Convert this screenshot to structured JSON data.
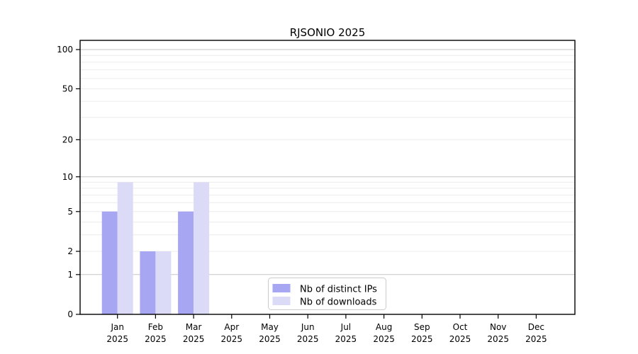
{
  "chart_data": {
    "type": "bar",
    "title": "RJSONIO 2025",
    "categories": [
      "Jan",
      "Feb",
      "Mar",
      "Apr",
      "May",
      "Jun",
      "Jul",
      "Aug",
      "Sep",
      "Oct",
      "Nov",
      "Dec"
    ],
    "x_tick_year_line": "2025",
    "series": [
      {
        "name": "Nb of distinct IPs",
        "key": "distinct-ips",
        "color": "#a6a6f3",
        "values": [
          5,
          2,
          5,
          0,
          0,
          0,
          0,
          0,
          0,
          0,
          0,
          0
        ]
      },
      {
        "name": "Nb of downloads",
        "key": "downloads",
        "color": "#dbdbf8",
        "values": [
          9,
          2,
          9,
          0,
          0,
          0,
          0,
          0,
          0,
          0,
          0,
          0
        ]
      }
    ],
    "y_axis": {
      "scale": "log10(value+1)",
      "tick_labels": [
        0,
        1,
        2,
        5,
        10,
        20,
        50,
        100
      ],
      "major_gridlines": [
        1,
        10,
        100
      ],
      "minor_gridlines": [
        2,
        3,
        4,
        5,
        6,
        7,
        8,
        9,
        20,
        30,
        40,
        50,
        60,
        70,
        80,
        90
      ],
      "range": [
        0,
        100
      ]
    },
    "legend": {
      "position": "inside-bottom-center",
      "entries": [
        "Nb of distinct IPs",
        "Nb of downloads"
      ]
    },
    "grid": true
  },
  "style": {
    "background": "#ffffff",
    "axis_color": "#000000",
    "major_grid_color": "#c6c6c6",
    "minor_grid_color": "#ececec",
    "legend_border_color": "#cccccc",
    "legend_fill": "#ffffff",
    "text_color": "#000000"
  }
}
